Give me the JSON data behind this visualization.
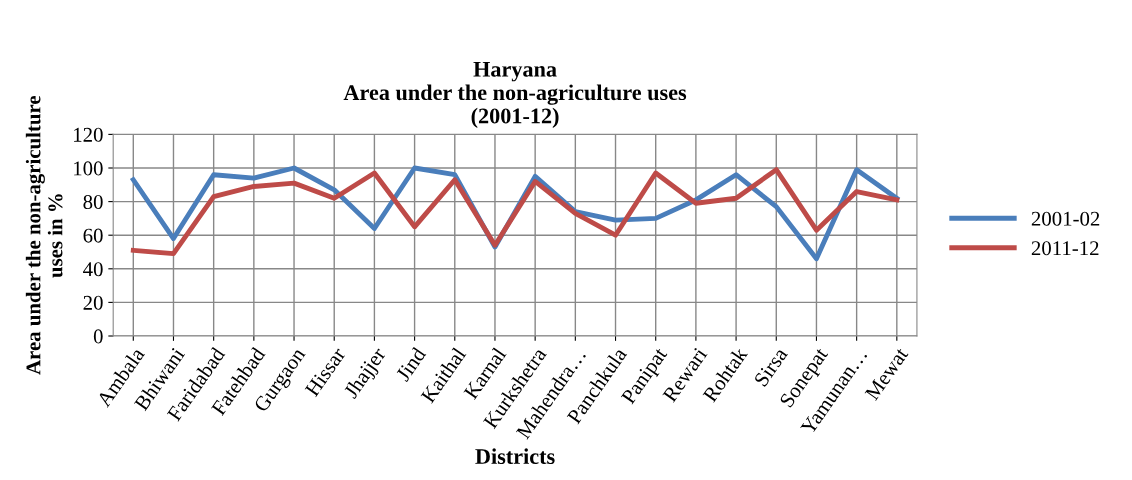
{
  "chart_data": {
    "type": "line",
    "title": "Haryana\nArea under the non-agriculture uses\n(2001-12)",
    "xlabel": "Districts",
    "ylabel": "Area under the non-agriculture\nuses in %",
    "categories": [
      "Ambala",
      "Bhiwani",
      "Faridabad",
      "Fatehbad",
      "Gurgaon",
      "Hissar",
      "Jhajjer",
      "Jind",
      "Kaithal",
      "Karnal",
      "Kurkshetra",
      "Mahendra…",
      "Panchkula",
      "Panipat",
      "Rewari",
      "Rohtak",
      "Sirsa",
      "Sonepat",
      "Yamunan…",
      "Mewat"
    ],
    "series": [
      {
        "name": "2001-02",
        "color": "#4a7ebb",
        "values": [
          93,
          58,
          96,
          94,
          100,
          87,
          64,
          100,
          96,
          53,
          95,
          74,
          69,
          70,
          81,
          96,
          77,
          46,
          99,
          82
        ]
      },
      {
        "name": "2011-12",
        "color": "#be4b48",
        "values": [
          51,
          49,
          83,
          89,
          91,
          82,
          97,
          65,
          93,
          54,
          92,
          73,
          60,
          97,
          79,
          82,
          99,
          63,
          86,
          81
        ]
      }
    ],
    "ylim": [
      0,
      120
    ],
    "yticks": [
      0,
      20,
      40,
      60,
      80,
      100,
      120
    ],
    "grid": true,
    "legend": "right",
    "marker": "none",
    "line_style": "solid"
  }
}
